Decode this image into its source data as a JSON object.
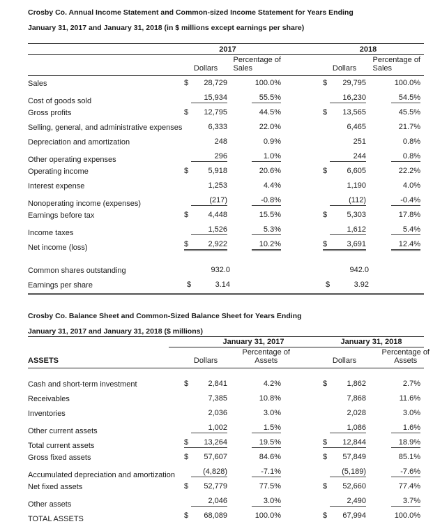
{
  "income_statement": {
    "title_line1": "Crosby Co. Annual Income Statement and Common-sized Income Statement for Years Ending",
    "title_line2": "January 31, 2017 and January 31, 2018 (in $ millions except earnings per share)",
    "year_groups": [
      "2017",
      "2018"
    ],
    "col_headers": {
      "dollars": "Dollars",
      "pct_line1": "Percentage of",
      "pct_line2": "Sales"
    },
    "rows": [
      {
        "label": "Sales",
        "cells": [
          {
            "s": "$",
            "v": "28,729"
          },
          {
            "v": "100.0%"
          },
          {
            "s": "$",
            "v": "29,795"
          },
          {
            "v": "100.0%"
          }
        ],
        "underline": "none"
      },
      {
        "label": "Cost of goods sold",
        "cells": [
          {
            "s": "",
            "v": "15,934"
          },
          {
            "v": "55.5%"
          },
          {
            "s": "",
            "v": "16,230"
          },
          {
            "v": "54.5%"
          }
        ],
        "underline": "single"
      },
      {
        "label": "Gross profits",
        "cells": [
          {
            "s": "$",
            "v": "12,795"
          },
          {
            "v": "44.5%"
          },
          {
            "s": "$",
            "v": "13,565"
          },
          {
            "v": "45.5%"
          }
        ],
        "underline": "none"
      },
      {
        "label": "Selling, general, and administrative expenses",
        "cells": [
          {
            "s": "",
            "v": "6,333"
          },
          {
            "v": "22.0%"
          },
          {
            "s": "",
            "v": "6,465"
          },
          {
            "v": "21.7%"
          }
        ],
        "underline": "none"
      },
      {
        "label": "Depreciation and amortization",
        "cells": [
          {
            "s": "",
            "v": "248"
          },
          {
            "v": "0.9%"
          },
          {
            "s": "",
            "v": "251"
          },
          {
            "v": "0.8%"
          }
        ],
        "underline": "none"
      },
      {
        "label": "Other operating expenses",
        "cells": [
          {
            "s": "",
            "v": "296"
          },
          {
            "v": "1.0%"
          },
          {
            "s": "",
            "v": "244"
          },
          {
            "v": "0.8%"
          }
        ],
        "underline": "single"
      },
      {
        "label": "Operating income",
        "cells": [
          {
            "s": "$",
            "v": "5,918"
          },
          {
            "v": "20.6%"
          },
          {
            "s": "$",
            "v": "6,605"
          },
          {
            "v": "22.2%"
          }
        ],
        "underline": "none"
      },
      {
        "label": "Interest expense",
        "cells": [
          {
            "s": "",
            "v": "1,253"
          },
          {
            "v": "4.4%"
          },
          {
            "s": "",
            "v": "1,190"
          },
          {
            "v": "4.0%"
          }
        ],
        "underline": "none"
      },
      {
        "label": "Nonoperating income (expenses)",
        "cells": [
          {
            "s": "",
            "v": "(217)"
          },
          {
            "v": "-0.8%"
          },
          {
            "s": "",
            "v": "(112)"
          },
          {
            "v": "-0.4%"
          }
        ],
        "underline": "single"
      },
      {
        "label": "Earnings before tax",
        "cells": [
          {
            "s": "$",
            "v": "4,448"
          },
          {
            "v": "15.5%"
          },
          {
            "s": "$",
            "v": "5,303"
          },
          {
            "v": "17.8%"
          }
        ],
        "underline": "none"
      },
      {
        "label": "Income taxes",
        "cells": [
          {
            "s": "",
            "v": "1,526"
          },
          {
            "v": "5.3%"
          },
          {
            "s": "",
            "v": "1,612"
          },
          {
            "v": "5.4%"
          }
        ],
        "underline": "single"
      },
      {
        "label": "Net income (loss)",
        "cells": [
          {
            "s": "$",
            "v": "2,922"
          },
          {
            "v": "10.2%"
          },
          {
            "s": "$",
            "v": "3,691"
          },
          {
            "v": "12.4%"
          }
        ],
        "underline": "double"
      },
      {
        "label": "Common shares outstanding",
        "cells": [
          {
            "s": "",
            "v": "932.0"
          },
          {
            "v": ""
          },
          {
            "s": "",
            "v": "942.0"
          },
          {
            "v": ""
          }
        ],
        "underline": "none",
        "gap_before": true,
        "dec": true
      },
      {
        "label": "Earnings per share",
        "cells": [
          {
            "s": "$",
            "v": "3.14"
          },
          {
            "v": ""
          },
          {
            "s": "$",
            "v": "3.92"
          },
          {
            "v": ""
          }
        ],
        "underline": "none",
        "dec": true
      }
    ]
  },
  "balance_sheet": {
    "title_line1": "Crosby Co. Balance Sheet and Common-Sized Balance Sheet for Years Ending",
    "title_line2": "January 31, 2017 and January 31, 2018 ($ millions)",
    "year_groups": [
      "January 31, 2017",
      "January 31, 2018"
    ],
    "section_header": "ASSETS",
    "col_headers": {
      "dollars": "Dollars",
      "pct_line1": "Percentage of",
      "pct_line2": "Assets"
    },
    "rows": [
      {
        "label": "Cash and short-term investment",
        "cells": [
          {
            "s": "$",
            "v": "2,841"
          },
          {
            "v": "4.2%"
          },
          {
            "s": "$",
            "v": "1,862"
          },
          {
            "v": "2.7%"
          }
        ],
        "underline": "none"
      },
      {
        "label": "Receivables",
        "cells": [
          {
            "s": "",
            "v": "7,385"
          },
          {
            "v": "10.8%"
          },
          {
            "s": "",
            "v": "7,868"
          },
          {
            "v": "11.6%"
          }
        ],
        "underline": "none"
      },
      {
        "label": "Inventories",
        "cells": [
          {
            "s": "",
            "v": "2,036"
          },
          {
            "v": "3.0%"
          },
          {
            "s": "",
            "v": "2,028"
          },
          {
            "v": "3.0%"
          }
        ],
        "underline": "none"
      },
      {
        "label": "Other current assets",
        "cells": [
          {
            "s": "",
            "v": "1,002"
          },
          {
            "v": "1.5%"
          },
          {
            "s": "",
            "v": "1,086"
          },
          {
            "v": "1.6%"
          }
        ],
        "underline": "single"
      },
      {
        "label": "Total current assets",
        "cells": [
          {
            "s": "$",
            "v": "13,264"
          },
          {
            "v": "19.5%"
          },
          {
            "s": "$",
            "v": "12,844"
          },
          {
            "v": "18.9%"
          }
        ],
        "underline": "single"
      },
      {
        "label": "Gross fixed assets",
        "cells": [
          {
            "s": "$",
            "v": "57,607"
          },
          {
            "v": "84.6%"
          },
          {
            "s": "$",
            "v": "57,849"
          },
          {
            "v": "85.1%"
          }
        ],
        "underline": "none"
      },
      {
        "label": "Accumulated depreciation and amortization",
        "cells": [
          {
            "s": "",
            "v": "(4,828)"
          },
          {
            "v": "-7.1%"
          },
          {
            "s": "",
            "v": "(5,189)"
          },
          {
            "v": "-7.6%"
          }
        ],
        "underline": "single"
      },
      {
        "label": "Net fixed assets",
        "cells": [
          {
            "s": "$",
            "v": "52,779"
          },
          {
            "v": "77.5%"
          },
          {
            "s": "$",
            "v": "52,660"
          },
          {
            "v": "77.4%"
          }
        ],
        "underline": "none"
      },
      {
        "label": "Other assets",
        "cells": [
          {
            "s": "",
            "v": "2,046"
          },
          {
            "v": "3.0%"
          },
          {
            "s": "",
            "v": "2,490"
          },
          {
            "v": "3.7%"
          }
        ],
        "underline": "single"
      },
      {
        "label": "TOTAL ASSETS",
        "cells": [
          {
            "s": "$",
            "v": "68,089"
          },
          {
            "v": "100.0%"
          },
          {
            "s": "$",
            "v": "67,994"
          },
          {
            "v": "100.0%"
          }
        ],
        "underline": "none",
        "low": true
      }
    ]
  },
  "colors": {
    "text": "#1a1a1a",
    "rule": "#222222",
    "number_underline": "#3f3f3f",
    "background": "#ffffff"
  }
}
